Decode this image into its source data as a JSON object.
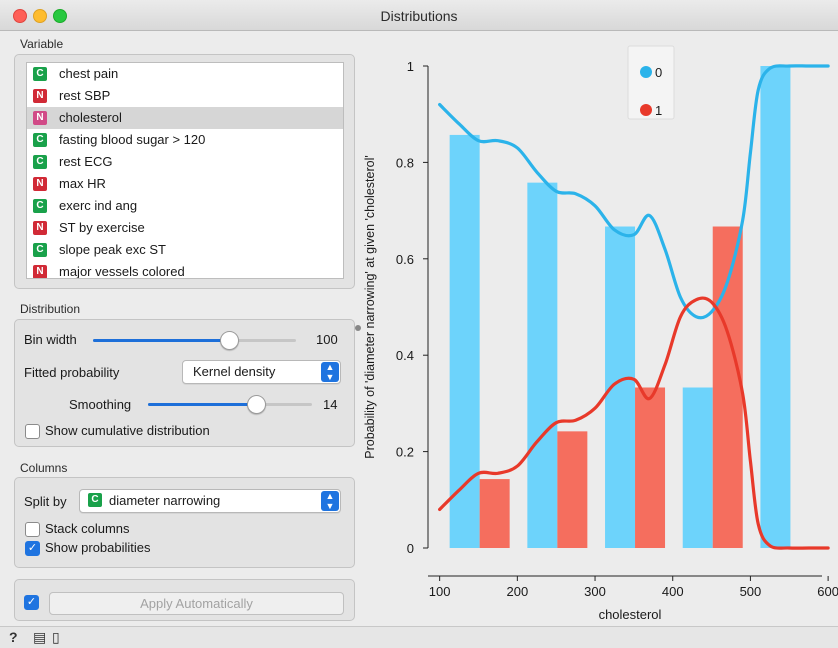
{
  "window": {
    "title": "Distributions"
  },
  "variable_section": {
    "label": "Variable",
    "items": [
      {
        "type": "C",
        "label": "chest pain",
        "selected": false
      },
      {
        "type": "N",
        "label": "rest SBP",
        "selected": false
      },
      {
        "type": "N",
        "label": "cholesterol",
        "selected": true
      },
      {
        "type": "C",
        "label": "fasting blood sugar > 120",
        "selected": false
      },
      {
        "type": "C",
        "label": "rest ECG",
        "selected": false
      },
      {
        "type": "N",
        "label": "max HR",
        "selected": false
      },
      {
        "type": "C",
        "label": "exerc ind ang",
        "selected": false
      },
      {
        "type": "N",
        "label": "ST by exercise",
        "selected": false
      },
      {
        "type": "C",
        "label": "slope peak exc ST",
        "selected": false
      },
      {
        "type": "N",
        "label": "major vessels colored",
        "selected": false
      }
    ]
  },
  "distribution_section": {
    "label": "Distribution",
    "bin_width_label": "Bin width",
    "bin_width_value": "100",
    "bin_width_level": 0.67,
    "fitted_label": "Fitted probability",
    "fitted_value": "Kernel density",
    "smoothing_label": "Smoothing",
    "smoothing_value": "14",
    "smoothing_level": 0.66,
    "cumulative_label": "Show cumulative distribution",
    "cumulative_checked": false
  },
  "columns_section": {
    "label": "Columns",
    "split_by_label": "Split by",
    "split_by_badge": "C",
    "split_by_value": "diameter narrowing",
    "stack_label": "Stack columns",
    "stack_checked": false,
    "probabilities_label": "Show probabilities",
    "probabilities_checked": true
  },
  "apply": {
    "checked": true,
    "label": "Apply Automatically"
  },
  "bottom_bar": {
    "icons": [
      "help-icon",
      "save-icon",
      "report-icon"
    ]
  },
  "colors": {
    "series_0": "#6dd3fb",
    "series_1": "#f56e5e",
    "curve_0": "#2bb3ea",
    "curve_1": "#e8392a",
    "accent": "#1f74e0"
  },
  "chart_data": {
    "type": "bar",
    "xlabel": "cholesterol",
    "ylabel": "Probability of 'diameter narrowing' at given 'cholesterol'",
    "xlim": [
      85,
      605
    ],
    "ylim": [
      0,
      1
    ],
    "x_ticks": [
      100,
      200,
      300,
      400,
      500,
      600
    ],
    "y_ticks": [
      0,
      0.2,
      0.4,
      0.6,
      0.8,
      1
    ],
    "y_tick_labels": [
      "0",
      "0.2",
      "0.4",
      "0.6",
      "0.8",
      "1"
    ],
    "bin_edges": [
      100,
      200,
      300,
      400,
      500,
      600
    ],
    "series": [
      {
        "name": "0",
        "values": [
          0.857,
          0.758,
          0.667,
          0.333,
          1.0
        ],
        "color": "#6dd3fb"
      },
      {
        "name": "1",
        "values": [
          0.143,
          0.242,
          0.333,
          0.667,
          0.0
        ],
        "color": "#f56e5e"
      }
    ],
    "curves": [
      {
        "name": "0",
        "x": [
          100,
          125,
          150,
          175,
          200,
          225,
          250,
          275,
          300,
          325,
          350,
          370,
          390,
          410,
          430,
          450,
          470,
          490,
          500,
          510,
          525,
          550,
          575,
          600
        ],
        "y": [
          0.92,
          0.88,
          0.845,
          0.845,
          0.83,
          0.78,
          0.74,
          0.735,
          0.71,
          0.66,
          0.65,
          0.69,
          0.62,
          0.52,
          0.48,
          0.49,
          0.55,
          0.68,
          0.82,
          0.95,
          0.995,
          1.0,
          1.0,
          1.0
        ]
      },
      {
        "name": "1",
        "x": [
          100,
          125,
          150,
          175,
          200,
          225,
          250,
          275,
          300,
          325,
          350,
          370,
          390,
          410,
          430,
          450,
          470,
          490,
          500,
          510,
          525,
          550,
          575,
          600
        ],
        "y": [
          0.08,
          0.12,
          0.155,
          0.155,
          0.17,
          0.22,
          0.26,
          0.265,
          0.29,
          0.34,
          0.35,
          0.31,
          0.38,
          0.48,
          0.515,
          0.51,
          0.45,
          0.32,
          0.18,
          0.05,
          0.005,
          0.0,
          0.0,
          0.0
        ]
      }
    ],
    "legend": {
      "placement": "top-center",
      "entries": [
        "0",
        "1"
      ]
    }
  }
}
